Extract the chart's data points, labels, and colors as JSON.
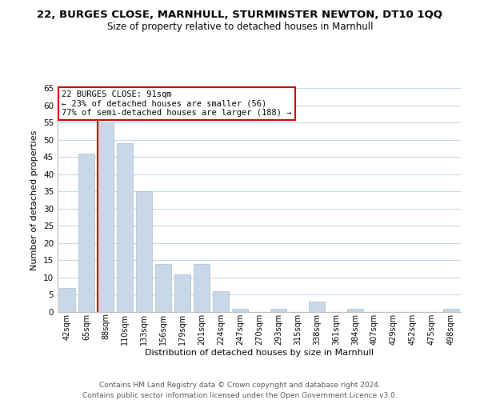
{
  "title": "22, BURGES CLOSE, MARNHULL, STURMINSTER NEWTON, DT10 1QQ",
  "subtitle": "Size of property relative to detached houses in Marnhull",
  "xlabel": "Distribution of detached houses by size in Marnhull",
  "ylabel": "Number of detached properties",
  "bin_labels": [
    "42sqm",
    "65sqm",
    "88sqm",
    "110sqm",
    "133sqm",
    "156sqm",
    "179sqm",
    "201sqm",
    "224sqm",
    "247sqm",
    "270sqm",
    "293sqm",
    "315sqm",
    "338sqm",
    "361sqm",
    "384sqm",
    "407sqm",
    "429sqm",
    "452sqm",
    "475sqm",
    "498sqm"
  ],
  "bar_heights": [
    7,
    46,
    55,
    49,
    35,
    14,
    11,
    14,
    6,
    1,
    0,
    1,
    0,
    3,
    0,
    1,
    0,
    0,
    0,
    0,
    1
  ],
  "bar_color": "#c8d8e8",
  "bar_edge_color": "#aabccc",
  "highlight_line_index": 2,
  "highlight_color": "#cc0000",
  "ylim": [
    0,
    65
  ],
  "yticks": [
    0,
    5,
    10,
    15,
    20,
    25,
    30,
    35,
    40,
    45,
    50,
    55,
    60,
    65
  ],
  "annotation_title": "22 BURGES CLOSE: 91sqm",
  "annotation_line1": "← 23% of detached houses are smaller (56)",
  "annotation_line2": "77% of semi-detached houses are larger (188) →",
  "footer_line1": "Contains HM Land Registry data © Crown copyright and database right 2024.",
  "footer_line2": "Contains public sector information licensed under the Open Government Licence v3.0.",
  "background_color": "#ffffff",
  "grid_color": "#c8d8e8"
}
